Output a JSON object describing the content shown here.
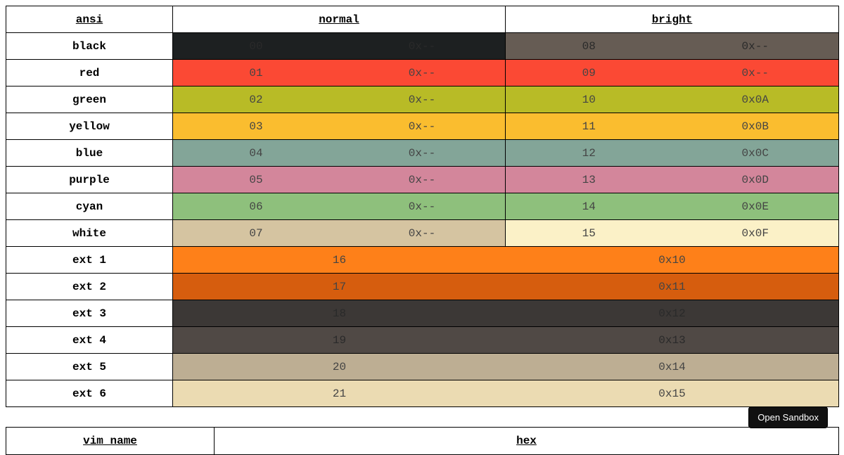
{
  "headers": {
    "ansi": "ansi",
    "normal": "normal",
    "bright": "bright"
  },
  "ansi_rows": [
    {
      "name": "black",
      "normal": {
        "num": "00",
        "hex": "0x--",
        "color": "#1d2021"
      },
      "bright": {
        "num": "08",
        "hex": "0x--",
        "color": "#665c54"
      }
    },
    {
      "name": "red",
      "normal": {
        "num": "01",
        "hex": "0x--",
        "color": "#fb4934"
      },
      "bright": {
        "num": "09",
        "hex": "0x--",
        "color": "#fb4934"
      }
    },
    {
      "name": "green",
      "normal": {
        "num": "02",
        "hex": "0x--",
        "color": "#b8bb26"
      },
      "bright": {
        "num": "10",
        "hex": "0x0A",
        "color": "#b8bb26"
      }
    },
    {
      "name": "yellow",
      "normal": {
        "num": "03",
        "hex": "0x--",
        "color": "#fabd2f"
      },
      "bright": {
        "num": "11",
        "hex": "0x0B",
        "color": "#fabd2f"
      }
    },
    {
      "name": "blue",
      "normal": {
        "num": "04",
        "hex": "0x--",
        "color": "#83a598"
      },
      "bright": {
        "num": "12",
        "hex": "0x0C",
        "color": "#83a598"
      }
    },
    {
      "name": "purple",
      "normal": {
        "num": "05",
        "hex": "0x--",
        "color": "#d3869b"
      },
      "bright": {
        "num": "13",
        "hex": "0x0D",
        "color": "#d3869b"
      }
    },
    {
      "name": "cyan",
      "normal": {
        "num": "06",
        "hex": "0x--",
        "color": "#8ec07c"
      },
      "bright": {
        "num": "14",
        "hex": "0x0E",
        "color": "#8ec07c"
      }
    },
    {
      "name": "white",
      "normal": {
        "num": "07",
        "hex": "0x--",
        "color": "#d5c4a1"
      },
      "bright": {
        "num": "15",
        "hex": "0x0F",
        "color": "#fbf1c7"
      }
    }
  ],
  "ext_rows": [
    {
      "name": "ext 1",
      "num": "16",
      "hex": "0x10",
      "color": "#fe8019"
    },
    {
      "name": "ext 2",
      "num": "17",
      "hex": "0x11",
      "color": "#d65d0e"
    },
    {
      "name": "ext 3",
      "num": "18",
      "hex": "0x12",
      "color": "#3c3836"
    },
    {
      "name": "ext 4",
      "num": "19",
      "hex": "0x13",
      "color": "#504945"
    },
    {
      "name": "ext 5",
      "num": "20",
      "hex": "0x14",
      "color": "#bdae93"
    },
    {
      "name": "ext 6",
      "num": "21",
      "hex": "0x15",
      "color": "#ebdbb2"
    }
  ],
  "vim_headers": {
    "name": "vim name",
    "hex": "hex"
  },
  "sandbox_button": "Open Sandbox"
}
